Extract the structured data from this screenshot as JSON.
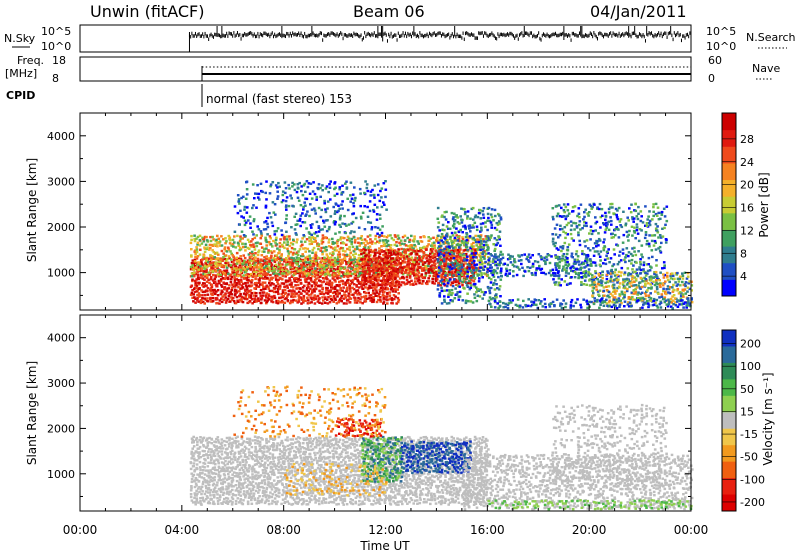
{
  "header": {
    "station": "Unwin (fitACF)",
    "beam": "Beam 06",
    "date": "04/Jan/2011"
  },
  "top_panels": {
    "nsky_label": "N.Sky",
    "nsky_ticks": [
      "10^5",
      "10^0"
    ],
    "nsearch_label": "N.Search",
    "nsearch_ticks": [
      "10^5",
      "10^0"
    ],
    "freq_label_1": "Freq.",
    "freq_label_2": "[MHz]",
    "freq_ticks": [
      "18",
      "8"
    ],
    "nave_label": "Nave",
    "nave_ticks": [
      "60",
      "0"
    ],
    "cpid_label": "CPID",
    "cpid_text": "normal (fast stereo) 153",
    "data_start_hour": 4.3
  },
  "chart_data": [
    {
      "type": "heatmap",
      "name": "power",
      "ylabel": "Slant Range [km]",
      "ylim": [
        180,
        4500
      ],
      "yticks": [
        1000,
        2000,
        3000,
        4000
      ],
      "xlim": [
        0,
        24
      ],
      "colorbar": {
        "label": "Power [dB]",
        "ticks": [
          "4",
          "8",
          "12",
          "16",
          "20",
          "24",
          "28"
        ],
        "colors": [
          "#0000ff",
          "#1f4fc4",
          "#2f7d8e",
          "#3fa060",
          "#7ac043",
          "#c8cc33",
          "#f4b02a",
          "#f58220",
          "#ef4a1c",
          "#e01a10",
          "#cc0000"
        ]
      }
    },
    {
      "type": "heatmap",
      "name": "velocity",
      "xlabel": "Time UT",
      "ylabel": "Slant Range [km]",
      "ylim": [
        180,
        4500
      ],
      "yticks": [
        1000,
        2000,
        3000,
        4000
      ],
      "xlim": [
        0,
        24
      ],
      "xticks": [
        "00:00",
        "04:00",
        "08:00",
        "12:00",
        "16:00",
        "20:00",
        "00:00"
      ],
      "colorbar": {
        "label": "Velocity [m s⁻¹]",
        "ticks": [
          "200",
          "100",
          "50",
          "15",
          "-15",
          "-50",
          "-100",
          "-200"
        ],
        "colors": [
          "#1030c0",
          "#2a6a9a",
          "#2e8b57",
          "#4cb848",
          "#8ed050",
          "#bebebe",
          "#f0c64a",
          "#f29a1e",
          "#f06010",
          "#e82010",
          "#dd0000"
        ]
      }
    }
  ]
}
